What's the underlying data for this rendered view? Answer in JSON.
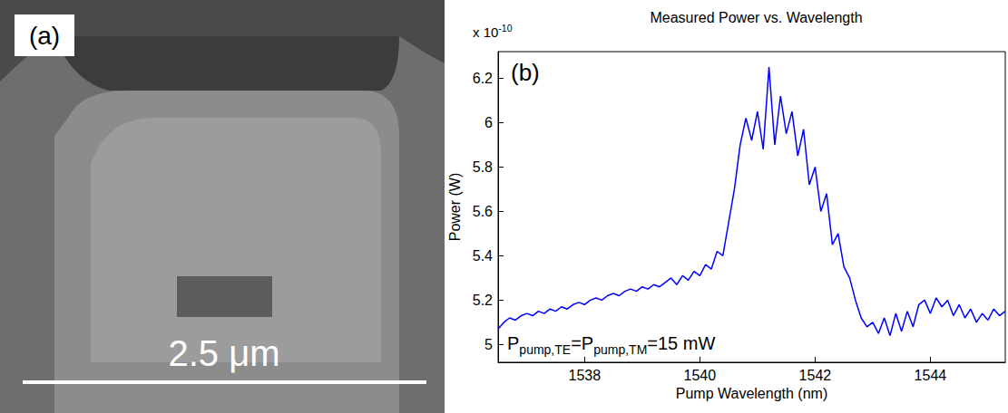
{
  "image_panel": {
    "label": "(a)",
    "scale_bar_label": "2.5 μm"
  },
  "chart_data": {
    "type": "line",
    "panel_label": "(b)",
    "title": "Measured Power vs. Wavelength",
    "x_label": "Pump Wavelength (nm)",
    "y_label": "Power (W)",
    "y_multiplier": {
      "text": "x 10",
      "superscript": "-10"
    },
    "annotation": [
      {
        "text": "P"
      },
      {
        "text": "pump,TE",
        "subscript": true
      },
      {
        "text": "=P"
      },
      {
        "text": "pump,TM",
        "subscript": true
      },
      {
        "text": "=15 mW"
      }
    ],
    "x": [
      1536.5,
      1536.6,
      1536.7,
      1536.8,
      1536.9,
      1537.0,
      1537.1,
      1537.2,
      1537.3,
      1537.4,
      1537.5,
      1537.6,
      1537.7,
      1537.8,
      1537.9,
      1538.0,
      1538.1,
      1538.2,
      1538.3,
      1538.4,
      1538.5,
      1538.6,
      1538.7,
      1538.8,
      1538.9,
      1539.0,
      1539.1,
      1539.2,
      1539.3,
      1539.4,
      1539.5,
      1539.6,
      1539.7,
      1539.8,
      1539.9,
      1540.0,
      1540.1,
      1540.2,
      1540.3,
      1540.4,
      1540.5,
      1540.6,
      1540.7,
      1540.8,
      1540.9,
      1541.0,
      1541.1,
      1541.2,
      1541.3,
      1541.4,
      1541.5,
      1541.6,
      1541.7,
      1541.8,
      1541.9,
      1542.0,
      1542.1,
      1542.2,
      1542.3,
      1542.4,
      1542.5,
      1542.6,
      1542.7,
      1542.8,
      1542.9,
      1543.0,
      1543.1,
      1543.2,
      1543.3,
      1543.4,
      1543.5,
      1543.6,
      1543.7,
      1543.8,
      1543.9,
      1544.0,
      1544.1,
      1544.2,
      1544.3,
      1544.4,
      1544.5,
      1544.6,
      1544.7,
      1544.8,
      1544.9,
      1545.0,
      1545.1,
      1545.2,
      1545.3
    ],
    "values": [
      5.07,
      5.1,
      5.12,
      5.11,
      5.13,
      5.14,
      5.13,
      5.15,
      5.14,
      5.16,
      5.15,
      5.17,
      5.16,
      5.18,
      5.19,
      5.18,
      5.2,
      5.21,
      5.2,
      5.22,
      5.23,
      5.22,
      5.24,
      5.25,
      5.24,
      5.26,
      5.25,
      5.27,
      5.26,
      5.28,
      5.3,
      5.27,
      5.31,
      5.29,
      5.33,
      5.31,
      5.36,
      5.34,
      5.42,
      5.4,
      5.55,
      5.7,
      5.9,
      6.02,
      5.92,
      6.05,
      5.88,
      6.25,
      5.9,
      6.12,
      5.95,
      6.05,
      5.85,
      5.97,
      5.72,
      5.8,
      5.6,
      5.68,
      5.45,
      5.5,
      5.35,
      5.3,
      5.2,
      5.12,
      5.08,
      5.1,
      5.05,
      5.12,
      5.04,
      5.14,
      5.06,
      5.15,
      5.08,
      5.18,
      5.2,
      5.14,
      5.21,
      5.17,
      5.2,
      5.13,
      5.18,
      5.12,
      5.16,
      5.1,
      5.14,
      5.11,
      5.16,
      5.13,
      5.15
    ],
    "color": "#0000ff",
    "xlim": [
      1536.5,
      1545.3
    ],
    "xticks": [
      1538,
      1540,
      1542,
      1544
    ],
    "ylim": [
      4.92,
      6.32
    ],
    "yticks": [
      5,
      5.2,
      5.4,
      5.6,
      5.8,
      6,
      6.2
    ],
    "grid": false
  }
}
